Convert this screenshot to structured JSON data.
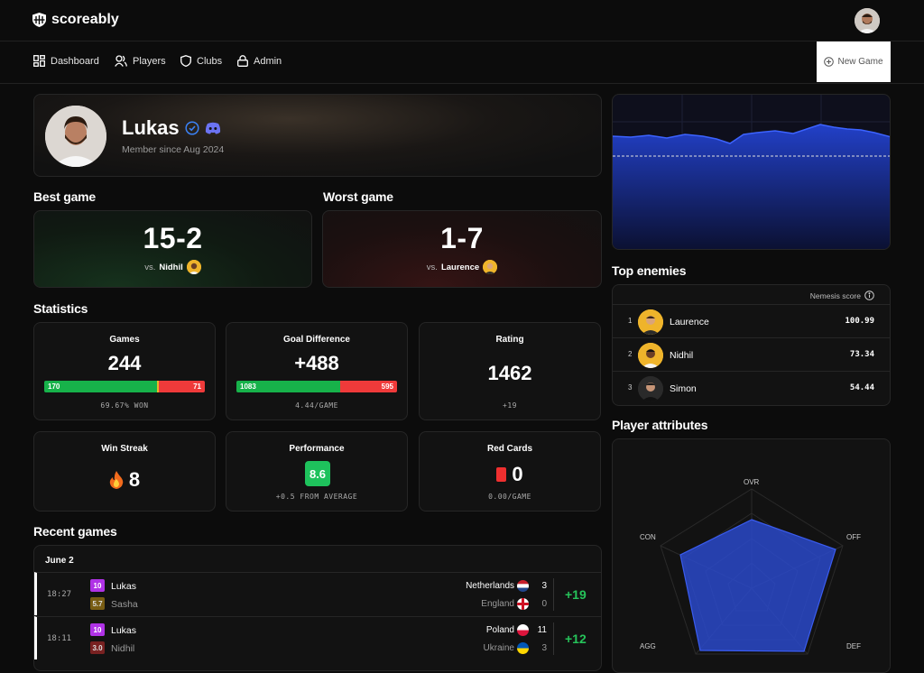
{
  "app": {
    "name": "scoreably"
  },
  "nav": {
    "items": [
      {
        "label": "Dashboard",
        "icon": "dashboard-icon"
      },
      {
        "label": "Players",
        "icon": "players-icon"
      },
      {
        "label": "Clubs",
        "icon": "shield-icon"
      },
      {
        "label": "Admin",
        "icon": "lock-icon"
      }
    ],
    "new_game_label": "New Game"
  },
  "profile": {
    "name": "Lukas",
    "member_since": "Member since Aug 2024"
  },
  "best_game": {
    "heading": "Best game",
    "score": "15-2",
    "vs_prefix": "vs.",
    "opponent": "Nidhil"
  },
  "worst_game": {
    "heading": "Worst game",
    "score": "1-7",
    "vs_prefix": "vs.",
    "opponent": "Laurence"
  },
  "statistics": {
    "heading": "Statistics",
    "games": {
      "title": "Games",
      "value": "244",
      "wins": "170",
      "losses": "71",
      "win_fraction": 0.705,
      "sub": "69.67% WON"
    },
    "goal_difference": {
      "title": "Goal Difference",
      "value": "+488",
      "scored": "1083",
      "conceded": "595",
      "scored_fraction": 0.645,
      "sub": "4.44/GAME"
    },
    "rating": {
      "title": "Rating",
      "value": "1462",
      "sub": "+19"
    },
    "win_streak": {
      "title": "Win Streak",
      "value": "8",
      "icon": "fire-icon"
    },
    "performance": {
      "title": "Performance",
      "value": "8.6",
      "sub": "+0.5 FROM AVERAGE"
    },
    "red_cards": {
      "title": "Red Cards",
      "value": "0",
      "sub": "0.00/GAME"
    }
  },
  "recent_games": {
    "heading": "Recent games",
    "date": "June 2",
    "rows": [
      {
        "time": "18:27",
        "p1": {
          "rating": "10",
          "name": "Lukas",
          "color": "#b032e6"
        },
        "p2": {
          "rating": "5.7",
          "name": "Sasha",
          "color": "#8a6a14"
        },
        "team1": {
          "name": "Netherlands",
          "goals": "3",
          "flag": "netherlands"
        },
        "team2": {
          "name": "England",
          "goals": "0",
          "flag": "england"
        },
        "delta": "+19"
      },
      {
        "time": "18:11",
        "p1": {
          "rating": "10",
          "name": "Lukas",
          "color": "#b032e6"
        },
        "p2": {
          "rating": "3.0",
          "name": "Nidhil",
          "color": "#8a2424"
        },
        "team1": {
          "name": "Poland",
          "goals": "11",
          "flag": "poland"
        },
        "team2": {
          "name": "Ukraine",
          "goals": "3",
          "flag": "ukraine"
        },
        "delta": "+12"
      }
    ]
  },
  "top_enemies": {
    "heading": "Top enemies",
    "column": "Nemesis score",
    "rows": [
      {
        "rank": "1",
        "name": "Laurence",
        "score": "100.99"
      },
      {
        "rank": "2",
        "name": "Nidhil",
        "score": "73.34"
      },
      {
        "rank": "3",
        "name": "Simon",
        "score": "54.44"
      }
    ]
  },
  "player_attributes": {
    "heading": "Player attributes",
    "labels": {
      "ovr": "OVR",
      "off": "OFF",
      "def": "DEF",
      "agg": "AGG",
      "con": "CON"
    }
  },
  "colors": {
    "accent_blue": "#2f4fd8",
    "win_green": "#17b24a",
    "loss_red": "#ef3a3a",
    "performance_green": "#1ec25c"
  }
}
